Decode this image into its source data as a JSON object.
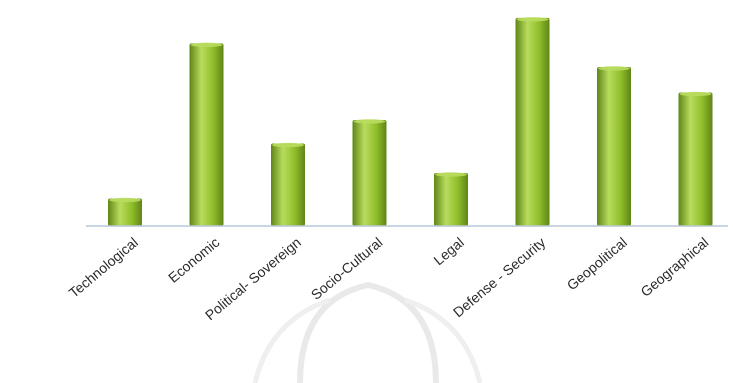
{
  "chart_data": {
    "type": "bar",
    "title": "",
    "xlabel": "",
    "ylabel": "",
    "categories": [
      "Technological",
      "Economic",
      "Political- Sovereign",
      "Socio-Cultural",
      "Legal",
      "Defense - Security",
      "Geopolitical",
      "Geographical"
    ],
    "values": [
      14,
      93,
      42,
      54,
      27,
      106,
      81,
      68
    ],
    "ylim": [
      0,
      110
    ],
    "grid": false,
    "legend": "none",
    "colors": {
      "bar_light": "#b9dc5e",
      "bar_mid": "#8fbe2a",
      "bar_dark": "#5f8516",
      "axis": "#b8c7d8"
    }
  }
}
